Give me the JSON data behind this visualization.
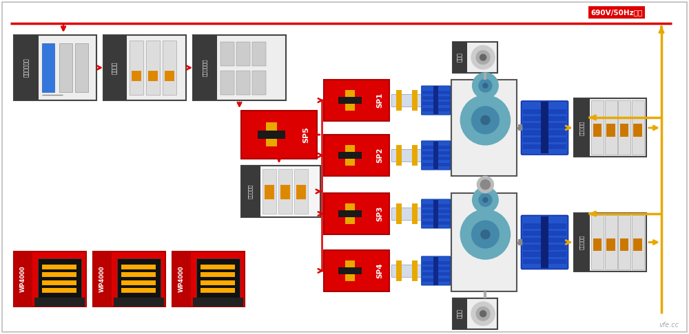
{
  "bg_color": "#ffffff",
  "border_color": "#bbbbbb",
  "red": "#dd0000",
  "gold": "#e8a800",
  "dark_gray": "#3a3a3a",
  "mid_gray": "#888888",
  "light_gray": "#e8e8e8",
  "title_690": "690V/50Hz电网",
  "label_transformer": "多维组变压器",
  "label_rectifier": "整流器组",
  "label_switch": "串并联转换柜",
  "label_sp5": "SP5",
  "label_sp1": "SP1",
  "label_sp2": "SP2",
  "label_sp3": "SP3",
  "label_sp4": "SP4",
  "label_gearbox_top": "齿轮筱",
  "label_gearbox_bot": "齿轮筱",
  "label_inverter_top": "陪试变频器",
  "label_inverter_bot": "陪试变频器",
  "label_wp1": "WP4000",
  "label_wp2": "WP4000",
  "label_wp3": "WP4000",
  "label_traction": "牢引变流器"
}
